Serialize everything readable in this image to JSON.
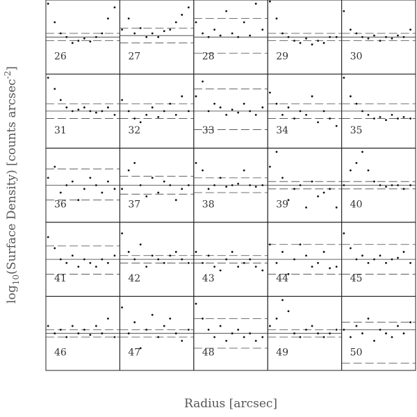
{
  "xlabel": "Radius [arcsec]",
  "ylabel": [
    "log",
    "10",
    "(Surface Density) [counts arcsec",
    "-2",
    "]"
  ],
  "chart_data": [
    {
      "type": "scatter",
      "title": "26",
      "xlim": [
        0,
        1
      ],
      "ylim": [
        0,
        1
      ],
      "x": [
        0.03,
        0.12,
        0.2,
        0.28,
        0.36,
        0.44,
        0.52,
        0.6,
        0.68,
        0.76,
        0.84,
        0.93
      ],
      "y": [
        0.95,
        0.7,
        0.55,
        0.5,
        0.42,
        0.45,
        0.48,
        0.44,
        0.5,
        0.55,
        0.75,
        0.9
      ],
      "solid": 0.5,
      "dashed": [
        0.45,
        0.55
      ]
    },
    {
      "type": "scatter",
      "title": "27",
      "xlim": [
        0,
        1
      ],
      "ylim": [
        0,
        1
      ],
      "x": [
        0.03,
        0.12,
        0.2,
        0.28,
        0.36,
        0.44,
        0.52,
        0.6,
        0.68,
        0.76,
        0.84,
        0.93
      ],
      "y": [
        0.6,
        0.75,
        0.55,
        0.62,
        0.5,
        0.55,
        0.5,
        0.58,
        0.6,
        0.7,
        0.8,
        0.9
      ],
      "solid": 0.52,
      "dashed": [
        0.42,
        0.62
      ]
    },
    {
      "type": "scatter",
      "title": "28",
      "xlim": [
        0,
        1
      ],
      "ylim": [
        0,
        1
      ],
      "x": [
        0.03,
        0.12,
        0.2,
        0.28,
        0.36,
        0.44,
        0.52,
        0.6,
        0.68,
        0.76,
        0.84,
        0.93
      ],
      "y": [
        0.7,
        0.55,
        0.5,
        0.6,
        0.52,
        0.85,
        0.55,
        0.5,
        0.7,
        0.52,
        0.95,
        0.6
      ],
      "solid": 0.5,
      "dashed": [
        0.28,
        0.75
      ]
    },
    {
      "type": "scatter",
      "title": "29",
      "xlim": [
        0,
        1
      ],
      "ylim": [
        0,
        1
      ],
      "x": [
        0.03,
        0.12,
        0.2,
        0.28,
        0.36,
        0.44,
        0.52,
        0.6,
        0.68,
        0.76,
        0.84,
        0.93
      ],
      "y": [
        0.98,
        0.75,
        0.55,
        0.5,
        0.45,
        0.42,
        0.48,
        0.4,
        0.45,
        0.42,
        0.5,
        0.5
      ],
      "solid": 0.5,
      "dashed": [
        0.45,
        0.55
      ]
    },
    {
      "type": "scatter",
      "title": "30",
      "xlim": [
        0,
        1
      ],
      "ylim": [
        0,
        1
      ],
      "x": [
        0.03,
        0.12,
        0.2,
        0.28,
        0.36,
        0.44,
        0.52,
        0.6,
        0.68,
        0.76,
        0.84,
        0.93
      ],
      "y": [
        0.85,
        0.6,
        0.55,
        0.5,
        0.48,
        0.52,
        0.45,
        0.5,
        0.48,
        0.52,
        0.5,
        0.6
      ],
      "solid": 0.5,
      "dashed": [
        0.45,
        0.55
      ]
    },
    {
      "type": "scatter",
      "title": "31",
      "xlim": [
        0,
        1
      ],
      "ylim": [
        0,
        1
      ],
      "x": [
        0.03,
        0.12,
        0.2,
        0.28,
        0.36,
        0.44,
        0.52,
        0.6,
        0.68,
        0.76,
        0.84,
        0.93
      ],
      "y": [
        0.95,
        0.8,
        0.65,
        0.55,
        0.5,
        0.52,
        0.55,
        0.5,
        0.48,
        0.5,
        0.55,
        0.45
      ],
      "solid": 0.5,
      "dashed": [
        0.4,
        0.6
      ]
    },
    {
      "type": "scatter",
      "title": "32",
      "xlim": [
        0,
        1
      ],
      "ylim": [
        0,
        1
      ],
      "x": [
        0.03,
        0.12,
        0.2,
        0.28,
        0.36,
        0.44,
        0.52,
        0.6,
        0.68,
        0.76,
        0.84,
        0.93
      ],
      "y": [
        0.65,
        0.5,
        0.4,
        0.35,
        0.45,
        0.55,
        0.42,
        0.5,
        0.6,
        0.45,
        0.7,
        0.5
      ],
      "solid": 0.5,
      "dashed": [
        0.4,
        0.6
      ]
    },
    {
      "type": "scatter",
      "title": "33",
      "xlim": [
        0,
        1
      ],
      "ylim": [
        0,
        1
      ],
      "x": [
        0.03,
        0.12,
        0.2,
        0.28,
        0.36,
        0.44,
        0.52,
        0.6,
        0.68,
        0.76,
        0.84,
        0.93
      ],
      "y": [
        0.7,
        0.9,
        0.5,
        0.6,
        0.55,
        0.45,
        0.52,
        0.48,
        0.6,
        0.5,
        0.45,
        0.55
      ],
      "solid": 0.5,
      "dashed": [
        0.25,
        0.8
      ]
    },
    {
      "type": "scatter",
      "title": "34",
      "xlim": [
        0,
        1
      ],
      "ylim": [
        0,
        1
      ],
      "x": [
        0.03,
        0.12,
        0.2,
        0.28,
        0.36,
        0.44,
        0.52,
        0.6,
        0.68,
        0.76,
        0.84,
        0.93
      ],
      "y": [
        0.75,
        0.6,
        0.45,
        0.55,
        0.4,
        0.5,
        0.45,
        0.7,
        0.35,
        0.5,
        0.4,
        0.3
      ],
      "solid": 0.5,
      "dashed": [
        0.4,
        0.6
      ]
    },
    {
      "type": "scatter",
      "title": "35",
      "xlim": [
        0,
        1
      ],
      "ylim": [
        0,
        1
      ],
      "x": [
        0.03,
        0.12,
        0.2,
        0.28,
        0.36,
        0.44,
        0.52,
        0.6,
        0.68,
        0.76,
        0.84,
        0.93
      ],
      "y": [
        0.95,
        0.7,
        0.6,
        0.5,
        0.45,
        0.4,
        0.42,
        0.38,
        0.45,
        0.4,
        0.42,
        0.4
      ],
      "solid": 0.5,
      "dashed": [
        0.4,
        0.6
      ]
    },
    {
      "type": "scatter",
      "title": "36",
      "xlim": [
        0,
        1
      ],
      "ylim": [
        0,
        1
      ],
      "x": [
        0.03,
        0.12,
        0.2,
        0.28,
        0.36,
        0.44,
        0.52,
        0.6,
        0.68,
        0.76,
        0.84,
        0.93
      ],
      "y": [
        0.6,
        0.75,
        0.4,
        0.5,
        0.55,
        0.3,
        0.45,
        0.6,
        0.5,
        0.4,
        0.55,
        0.45
      ],
      "solid": 0.5,
      "dashed": [
        0.3,
        0.72
      ]
    },
    {
      "type": "scatter",
      "title": "37",
      "xlim": [
        0,
        1
      ],
      "ylim": [
        0,
        1
      ],
      "x": [
        0.03,
        0.12,
        0.2,
        0.28,
        0.36,
        0.44,
        0.52,
        0.6,
        0.68,
        0.76,
        0.84,
        0.93
      ],
      "y": [
        0.45,
        0.7,
        0.8,
        0.5,
        0.35,
        0.6,
        0.4,
        0.55,
        0.5,
        0.3,
        0.45,
        0.5
      ],
      "solid": 0.5,
      "dashed": [
        0.38,
        0.62
      ]
    },
    {
      "type": "scatter",
      "title": "38",
      "xlim": [
        0,
        1
      ],
      "ylim": [
        0,
        1
      ],
      "x": [
        0.03,
        0.12,
        0.2,
        0.28,
        0.36,
        0.44,
        0.52,
        0.6,
        0.68,
        0.76,
        0.84,
        0.93
      ],
      "y": [
        0.8,
        0.7,
        0.45,
        0.5,
        0.6,
        0.48,
        0.5,
        0.52,
        0.7,
        0.5,
        0.48,
        0.5
      ],
      "solid": 0.5,
      "dashed": [
        0.4,
        0.6
      ]
    },
    {
      "type": "scatter",
      "title": "39",
      "xlim": [
        0,
        1
      ],
      "ylim": [
        0,
        1
      ],
      "x": [
        0.03,
        0.12,
        0.2,
        0.28,
        0.36,
        0.44,
        0.52,
        0.6,
        0.68,
        0.76,
        0.84,
        0.93
      ],
      "y": [
        0.75,
        0.95,
        0.6,
        0.3,
        0.45,
        0.5,
        0.2,
        0.55,
        0.35,
        0.4,
        0.45,
        0.2
      ],
      "solid": 0.5,
      "dashed": [
        0.45,
        0.55
      ]
    },
    {
      "type": "scatter",
      "title": "40",
      "xlim": [
        0,
        1
      ],
      "ylim": [
        0,
        1
      ],
      "x": [
        0.03,
        0.12,
        0.2,
        0.28,
        0.36,
        0.44,
        0.52,
        0.6,
        0.68,
        0.76,
        0.84,
        0.93
      ],
      "y": [
        0.5,
        0.7,
        0.8,
        0.95,
        0.7,
        0.55,
        0.5,
        0.48,
        0.5,
        0.5,
        0.45,
        0.5
      ],
      "solid": 0.5,
      "dashed": [
        0.45,
        0.55
      ]
    },
    {
      "type": "scatter",
      "title": "41",
      "xlim": [
        0,
        1
      ],
      "ylim": [
        0,
        1
      ],
      "x": [
        0.03,
        0.12,
        0.2,
        0.28,
        0.36,
        0.44,
        0.52,
        0.6,
        0.68,
        0.76,
        0.84,
        0.93
      ],
      "y": [
        0.8,
        0.65,
        0.5,
        0.45,
        0.55,
        0.4,
        0.5,
        0.45,
        0.4,
        0.5,
        0.45,
        0.55
      ],
      "solid": 0.5,
      "dashed": [
        0.3,
        0.68
      ]
    },
    {
      "type": "scatter",
      "title": "42",
      "xlim": [
        0,
        1
      ],
      "ylim": [
        0,
        1
      ],
      "x": [
        0.03,
        0.12,
        0.2,
        0.28,
        0.36,
        0.44,
        0.52,
        0.6,
        0.68,
        0.76,
        0.84,
        0.93
      ],
      "y": [
        0.85,
        0.6,
        0.5,
        0.7,
        0.4,
        0.55,
        0.5,
        0.45,
        0.55,
        0.6,
        0.5,
        0.45
      ],
      "solid": 0.5,
      "dashed": [
        0.45,
        0.55
      ]
    },
    {
      "type": "scatter",
      "title": "43",
      "xlim": [
        0,
        1
      ],
      "ylim": [
        0,
        1
      ],
      "x": [
        0.03,
        0.12,
        0.2,
        0.28,
        0.36,
        0.44,
        0.52,
        0.6,
        0.68,
        0.76,
        0.84,
        0.93
      ],
      "y": [
        0.6,
        0.45,
        0.55,
        0.4,
        0.35,
        0.5,
        0.6,
        0.4,
        0.45,
        0.5,
        0.4,
        0.35
      ],
      "solid": 0.5,
      "dashed": [
        0.45,
        0.55
      ]
    },
    {
      "type": "scatter",
      "title": "44",
      "xlim": [
        0,
        1
      ],
      "ylim": [
        0,
        1
      ],
      "x": [
        0.03,
        0.12,
        0.2,
        0.28,
        0.36,
        0.44,
        0.52,
        0.6,
        0.68,
        0.76,
        0.84,
        0.93
      ],
      "y": [
        0.7,
        0.45,
        0.6,
        0.3,
        0.5,
        0.7,
        0.55,
        0.4,
        0.45,
        0.6,
        0.38,
        0.4
      ],
      "solid": 0.5,
      "dashed": [
        0.3,
        0.7
      ]
    },
    {
      "type": "scatter",
      "title": "45",
      "xlim": [
        0,
        1
      ],
      "ylim": [
        0,
        1
      ],
      "x": [
        0.03,
        0.12,
        0.2,
        0.28,
        0.36,
        0.44,
        0.52,
        0.6,
        0.68,
        0.76,
        0.84,
        0.93
      ],
      "y": [
        0.85,
        0.65,
        0.5,
        0.55,
        0.45,
        0.5,
        0.55,
        0.45,
        0.5,
        0.52,
        0.6,
        0.45
      ],
      "solid": 0.5,
      "dashed": [
        0.3,
        0.7
      ]
    },
    {
      "type": "scatter",
      "title": "46",
      "xlim": [
        0,
        1
      ],
      "ylim": [
        0,
        1
      ],
      "x": [
        0.03,
        0.12,
        0.2,
        0.28,
        0.36,
        0.44,
        0.52,
        0.6,
        0.68,
        0.76,
        0.84,
        0.93
      ],
      "y": [
        0.6,
        0.5,
        0.55,
        0.45,
        0.6,
        0.5,
        0.55,
        0.48,
        0.6,
        0.5,
        0.7,
        0.45
      ],
      "solid": 0.5,
      "dashed": [
        0.45,
        0.55
      ]
    },
    {
      "type": "scatter",
      "title": "47",
      "xlim": [
        0,
        1
      ],
      "ylim": [
        0,
        1
      ],
      "x": [
        0.03,
        0.12,
        0.2,
        0.28,
        0.36,
        0.44,
        0.52,
        0.6,
        0.68,
        0.76,
        0.84,
        0.93
      ],
      "y": [
        0.85,
        0.5,
        0.65,
        0.3,
        0.55,
        0.75,
        0.45,
        0.6,
        0.7,
        0.5,
        0.4,
        0.55
      ],
      "solid": 0.5,
      "dashed": [
        0.45,
        0.55
      ]
    },
    {
      "type": "scatter",
      "title": "48",
      "xlim": [
        0,
        1
      ],
      "ylim": [
        0,
        1
      ],
      "x": [
        0.03,
        0.12,
        0.2,
        0.28,
        0.36,
        0.44,
        0.52,
        0.6,
        0.68,
        0.76,
        0.84,
        0.93
      ],
      "y": [
        0.9,
        0.7,
        0.55,
        0.45,
        0.6,
        0.4,
        0.5,
        0.55,
        0.45,
        0.5,
        0.4,
        0.45
      ],
      "solid": 0.5,
      "dashed": [
        0.3,
        0.7
      ]
    },
    {
      "type": "scatter",
      "title": "49",
      "xlim": [
        0,
        1
      ],
      "ylim": [
        0,
        1
      ],
      "x": [
        0.03,
        0.12,
        0.2,
        0.28,
        0.36,
        0.44,
        0.52,
        0.6,
        0.68,
        0.76,
        0.84,
        0.93
      ],
      "y": [
        0.6,
        0.7,
        0.95,
        0.8,
        0.5,
        0.45,
        0.55,
        0.6,
        0.5,
        0.45,
        0.5,
        0.55
      ],
      "solid": 0.5,
      "dashed": [
        0.45,
        0.55
      ]
    },
    {
      "type": "scatter",
      "title": "50",
      "xlim": [
        0,
        1
      ],
      "ylim": [
        0,
        1
      ],
      "x": [
        0.03,
        0.12,
        0.2,
        0.28,
        0.36,
        0.44,
        0.52,
        0.6,
        0.68,
        0.76,
        0.84,
        0.93
      ],
      "y": [
        0.55,
        0.45,
        0.6,
        0.5,
        0.7,
        0.4,
        0.55,
        0.5,
        0.45,
        0.6,
        0.5,
        0.65
      ],
      "solid": 0.55,
      "dashed": [
        0.1,
        0.65
      ]
    }
  ]
}
